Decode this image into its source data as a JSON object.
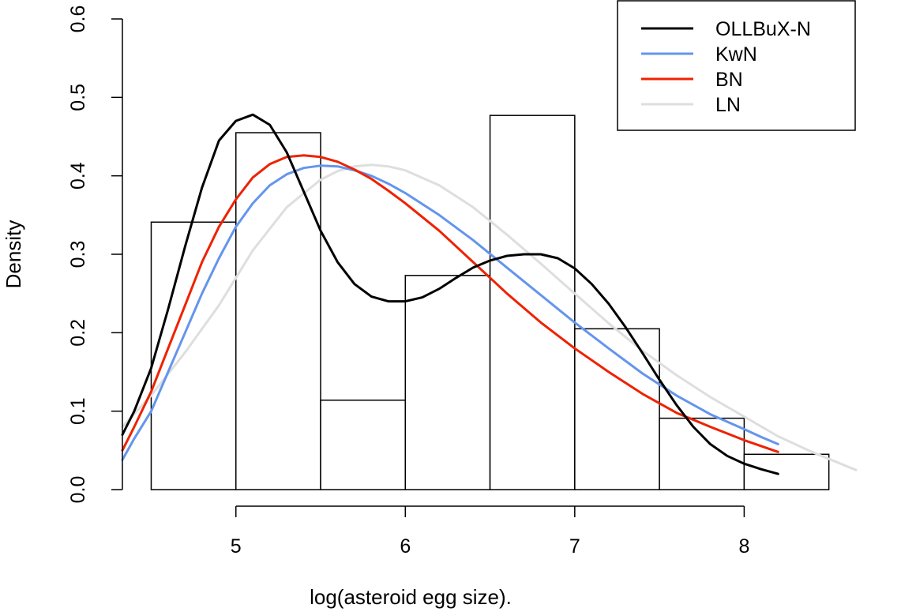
{
  "chart_data": {
    "type": "histogram",
    "title": "",
    "xlabel": "log(asteroid egg size).",
    "ylabel": "Density",
    "xlim": [
      4.33,
      8.66
    ],
    "ylim": [
      0,
      0.6
    ],
    "x_ticks": [
      5,
      6,
      7,
      8
    ],
    "x_tick_labels": [
      "5",
      "6",
      "7",
      "8"
    ],
    "y_ticks": [
      0.0,
      0.1,
      0.2,
      0.3,
      0.4,
      0.5,
      0.6
    ],
    "y_tick_labels": [
      "0.0",
      "0.1",
      "0.2",
      "0.3",
      "0.4",
      "0.5",
      "0.6"
    ],
    "grid": false,
    "legend_position": "top-right",
    "histogram": {
      "bins": [
        {
          "x0": 4.5,
          "x1": 5.0,
          "density": 0.341
        },
        {
          "x0": 5.0,
          "x1": 5.5,
          "density": 0.455
        },
        {
          "x0": 5.5,
          "x1": 6.0,
          "density": 0.114
        },
        {
          "x0": 6.0,
          "x1": 6.5,
          "density": 0.273
        },
        {
          "x0": 6.5,
          "x1": 7.0,
          "density": 0.477
        },
        {
          "x0": 7.0,
          "x1": 7.5,
          "density": 0.205
        },
        {
          "x0": 7.5,
          "x1": 8.0,
          "density": 0.091
        },
        {
          "x0": 8.0,
          "x1": 8.5,
          "density": 0.045
        }
      ]
    },
    "series": [
      {
        "name": "OLLBuX-N",
        "color": "#000000",
        "x": [
          4.33,
          4.4,
          4.5,
          4.6,
          4.7,
          4.8,
          4.9,
          5.0,
          5.1,
          5.2,
          5.3,
          5.4,
          5.5,
          5.6,
          5.7,
          5.8,
          5.9,
          6.0,
          6.1,
          6.2,
          6.3,
          6.4,
          6.5,
          6.6,
          6.7,
          6.8,
          6.9,
          7.0,
          7.1,
          7.2,
          7.3,
          7.4,
          7.5,
          7.6,
          7.7,
          7.8,
          7.9,
          8.0,
          8.1,
          8.2
        ],
        "y": [
          0.07,
          0.1,
          0.155,
          0.23,
          0.31,
          0.385,
          0.445,
          0.47,
          0.478,
          0.465,
          0.43,
          0.38,
          0.33,
          0.29,
          0.262,
          0.246,
          0.24,
          0.24,
          0.245,
          0.256,
          0.27,
          0.283,
          0.292,
          0.298,
          0.3,
          0.3,
          0.295,
          0.282,
          0.262,
          0.237,
          0.207,
          0.174,
          0.14,
          0.108,
          0.08,
          0.058,
          0.043,
          0.033,
          0.026,
          0.02
        ]
      },
      {
        "name": "KwN",
        "color": "#6495ED",
        "x": [
          4.33,
          4.4,
          4.5,
          4.6,
          4.7,
          4.8,
          4.9,
          5.0,
          5.1,
          5.2,
          5.3,
          5.4,
          5.5,
          5.6,
          5.7,
          5.8,
          5.9,
          6.0,
          6.2,
          6.4,
          6.6,
          6.8,
          7.0,
          7.2,
          7.4,
          7.6,
          7.8,
          8.0,
          8.1,
          8.2
        ],
        "y": [
          0.038,
          0.065,
          0.1,
          0.15,
          0.2,
          0.25,
          0.295,
          0.335,
          0.365,
          0.388,
          0.402,
          0.41,
          0.413,
          0.412,
          0.407,
          0.4,
          0.39,
          0.378,
          0.35,
          0.318,
          0.283,
          0.248,
          0.213,
          0.18,
          0.148,
          0.12,
          0.096,
          0.077,
          0.067,
          0.058
        ]
      },
      {
        "name": "BN",
        "color": "#EE2200",
        "x": [
          4.33,
          4.4,
          4.5,
          4.6,
          4.7,
          4.8,
          4.9,
          5.0,
          5.1,
          5.2,
          5.3,
          5.4,
          5.5,
          5.6,
          5.7,
          5.8,
          5.9,
          6.0,
          6.2,
          6.4,
          6.6,
          6.8,
          7.0,
          7.2,
          7.4,
          7.6,
          7.8,
          8.0,
          8.2
        ],
        "y": [
          0.05,
          0.08,
          0.125,
          0.18,
          0.235,
          0.29,
          0.335,
          0.37,
          0.398,
          0.415,
          0.424,
          0.426,
          0.424,
          0.418,
          0.408,
          0.396,
          0.381,
          0.365,
          0.33,
          0.29,
          0.25,
          0.213,
          0.18,
          0.15,
          0.122,
          0.098,
          0.08,
          0.063,
          0.048
        ]
      },
      {
        "name": "LN",
        "color": "#DEDEDE",
        "x": [
          4.33,
          4.5,
          4.7,
          4.9,
          5.1,
          5.3,
          5.5,
          5.6,
          5.7,
          5.8,
          5.9,
          6.0,
          6.2,
          6.4,
          6.6,
          6.8,
          7.0,
          7.2,
          7.4,
          7.6,
          7.8,
          8.0,
          8.2,
          8.4,
          8.66
        ],
        "y": [
          0.08,
          0.12,
          0.175,
          0.235,
          0.305,
          0.36,
          0.395,
          0.406,
          0.412,
          0.414,
          0.412,
          0.407,
          0.388,
          0.36,
          0.325,
          0.288,
          0.25,
          0.212,
          0.177,
          0.146,
          0.118,
          0.093,
          0.068,
          0.048,
          0.025
        ]
      }
    ]
  }
}
